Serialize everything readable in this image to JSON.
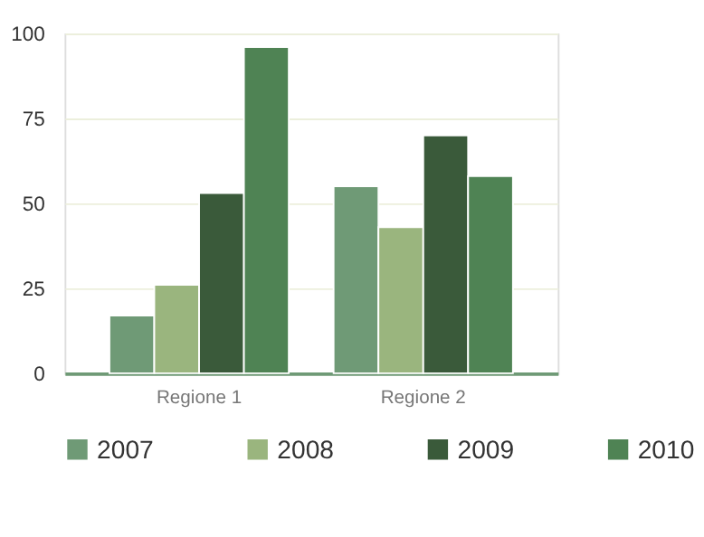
{
  "chart_data": {
    "type": "bar",
    "categories": [
      "Regione 1",
      "Regione 2"
    ],
    "series": [
      {
        "name": "2007",
        "color": "#6f9a76",
        "values": [
          17,
          55
        ]
      },
      {
        "name": "2008",
        "color": "#9ab57e",
        "values": [
          26,
          43
        ]
      },
      {
        "name": "2009",
        "color": "#3a5a3a",
        "values": [
          53,
          70
        ]
      },
      {
        "name": "2010",
        "color": "#4f8354",
        "values": [
          96,
          58
        ]
      }
    ],
    "ylim": [
      0,
      100
    ],
    "yticks": [
      0,
      25,
      50,
      75,
      100
    ],
    "grid": "y",
    "legend": "bottom"
  }
}
